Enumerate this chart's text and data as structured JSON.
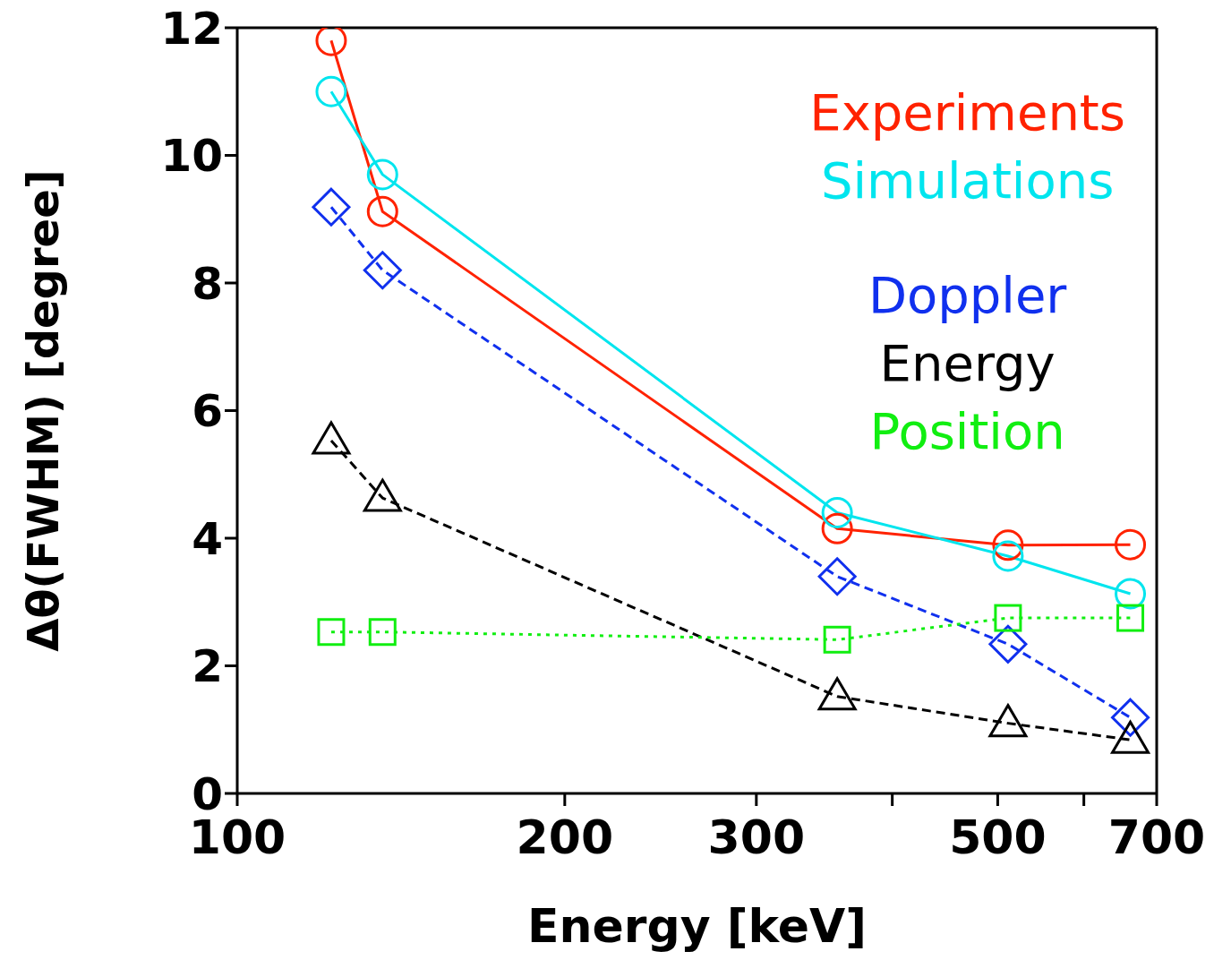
{
  "chart_data": {
    "type": "line",
    "xlabel": "Energy [keV]",
    "ylabel": "Δθ(FWHM) [degree]",
    "x": [
      122,
      136,
      356,
      511,
      662
    ],
    "xlim": [
      100,
      700
    ],
    "xticks": [
      100,
      200,
      300,
      {
        "value": 400,
        "label": null
      },
      500,
      {
        "value": 600,
        "label": null
      },
      700
    ],
    "ylim": [
      0,
      12
    ],
    "yticks": [
      0,
      2,
      4,
      6,
      8,
      10,
      12
    ],
    "log": "x",
    "legend": "top right",
    "grid": false,
    "series": [
      {
        "name": "Experiments",
        "color": "#ff2200",
        "values": [
          11.8,
          9.12,
          4.15,
          3.89,
          3.9
        ],
        "marker": "circle",
        "line_style": "solid"
      },
      {
        "name": "Simulations",
        "color": "#00e5ee",
        "values": [
          11.0,
          9.7,
          4.4,
          3.72,
          3.13
        ],
        "marker": "circle",
        "line_style": "solid"
      },
      {
        "name": "Doppler",
        "color": "#1030ee",
        "values": [
          9.19,
          8.2,
          3.4,
          2.34,
          1.19
        ],
        "marker": "diamond",
        "line_style": "dashed"
      },
      {
        "name": "Energy",
        "color": "#000000",
        "values": [
          5.53,
          4.63,
          1.52,
          1.1,
          0.84
        ],
        "marker": "triangle",
        "line_style": "dashed"
      },
      {
        "name": "Position",
        "color": "#11ee11",
        "values": [
          2.53,
          2.53,
          2.41,
          2.75,
          2.75
        ],
        "marker": "square",
        "line_style": "dotted"
      }
    ]
  }
}
